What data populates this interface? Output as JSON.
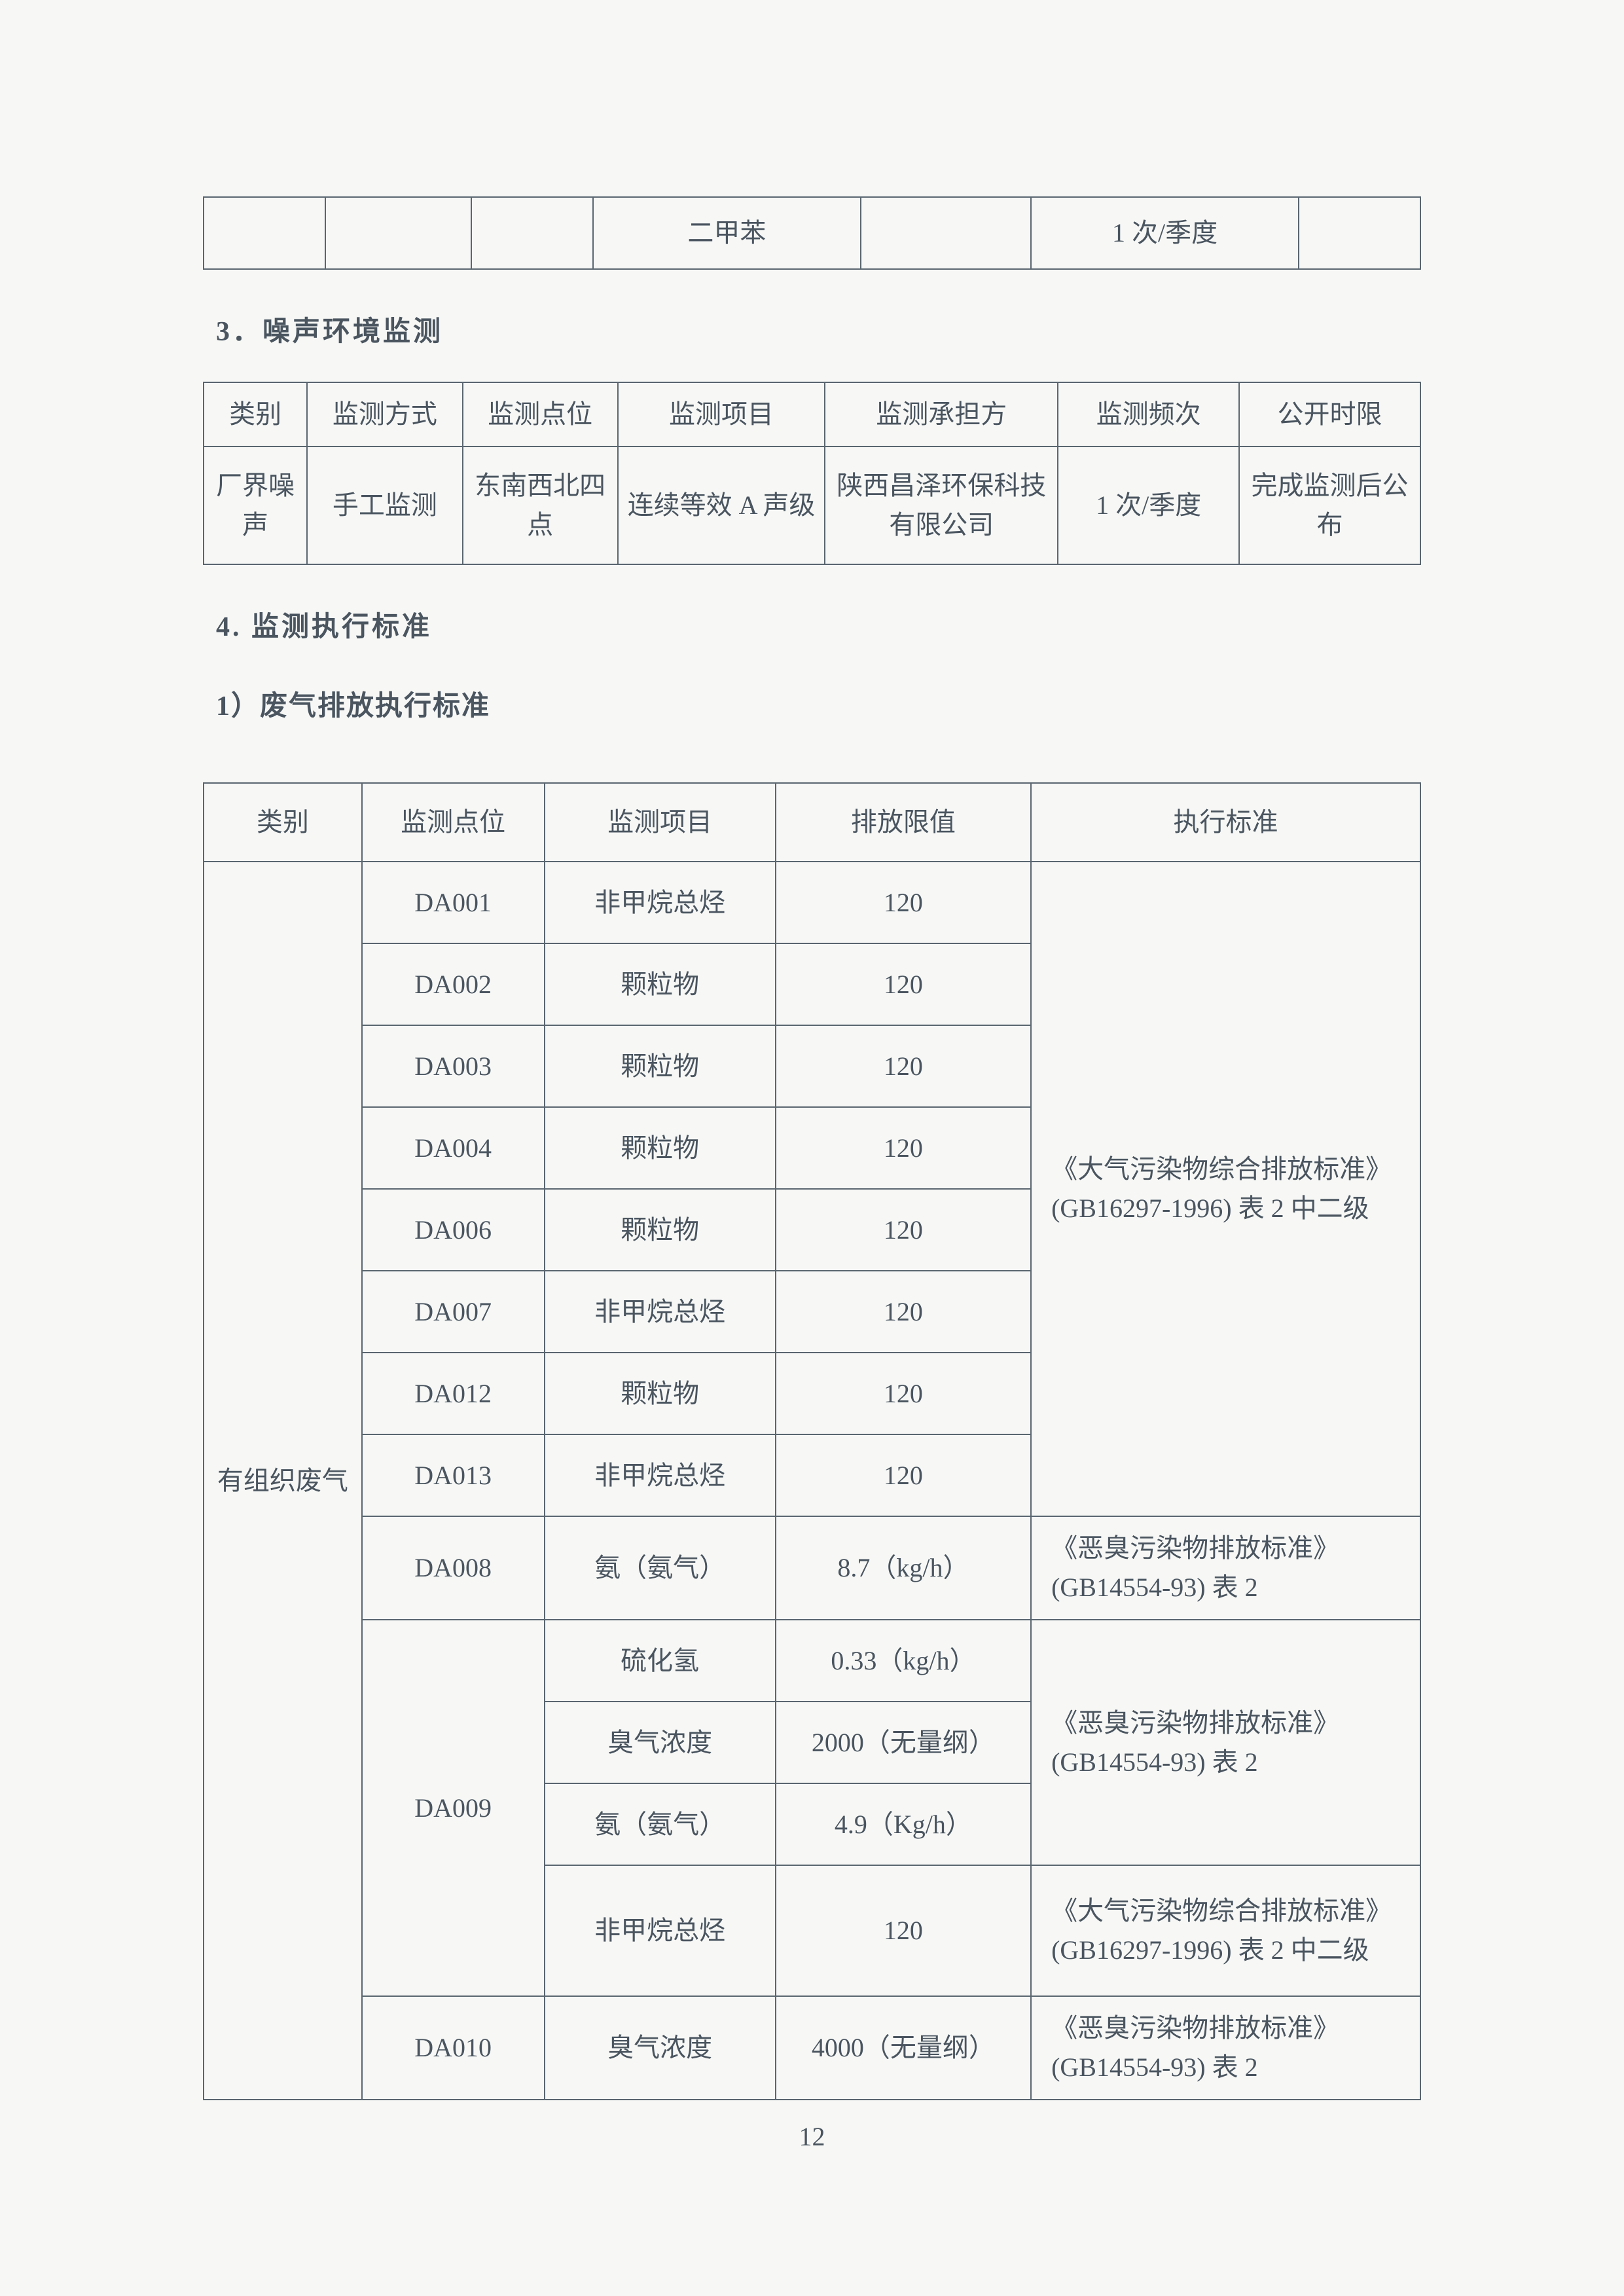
{
  "topTable": {
    "row": {
      "item": "二甲苯",
      "freq": "1 次/季度"
    }
  },
  "section3": {
    "heading": "3．噪声环境监测",
    "headers": [
      "类别",
      "监测方式",
      "监测点位",
      "监测项目",
      "监测承担方",
      "监测频次",
      "公开时限"
    ],
    "row": [
      "厂界噪声",
      "手工监测",
      "东南西北四点",
      "连续等效 A 声级",
      "陕西昌泽环保科技有限公司",
      "1 次/季度",
      "完成监测后公布"
    ]
  },
  "section4": {
    "heading": "4. 监测执行标准",
    "sub1": "1）废气排放执行标准"
  },
  "emissionTable": {
    "headers": [
      "类别",
      "监测点位",
      "监测项目",
      "排放限值",
      "执行标准"
    ],
    "category": "有组织废气",
    "std_gb16297": "《大气污染物综合排放标准》(GB16297-1996) 表 2 中二级",
    "std_gb14554": "《恶臭污染物排放标准》(GB14554-93) 表 2",
    "rows": [
      {
        "point": "DA001",
        "item": "非甲烷总烃",
        "limit": "120"
      },
      {
        "point": "DA002",
        "item": "颗粒物",
        "limit": "120"
      },
      {
        "point": "DA003",
        "item": "颗粒物",
        "limit": "120"
      },
      {
        "point": "DA004",
        "item": "颗粒物",
        "limit": "120"
      },
      {
        "point": "DA006",
        "item": "颗粒物",
        "limit": "120"
      },
      {
        "point": "DA007",
        "item": "非甲烷总烃",
        "limit": "120"
      },
      {
        "point": "DA012",
        "item": "颗粒物",
        "limit": "120"
      },
      {
        "point": "DA013",
        "item": "非甲烷总烃",
        "limit": "120"
      },
      {
        "point": "DA008",
        "item": "氨（氨气）",
        "limit": "8.7（kg/h）"
      },
      {
        "point": "DA009",
        "item": "硫化氢",
        "limit": "0.33（kg/h）"
      },
      {
        "point": "",
        "item": "臭气浓度",
        "limit": "2000（无量纲）"
      },
      {
        "point": "",
        "item": "氨（氨气）",
        "limit": "4.9（Kg/h）"
      },
      {
        "point": "",
        "item": "非甲烷总烃",
        "limit": "120"
      },
      {
        "point": "DA010",
        "item": "臭气浓度",
        "limit": "4000（无量纲）"
      }
    ]
  },
  "pageNumber": "12"
}
